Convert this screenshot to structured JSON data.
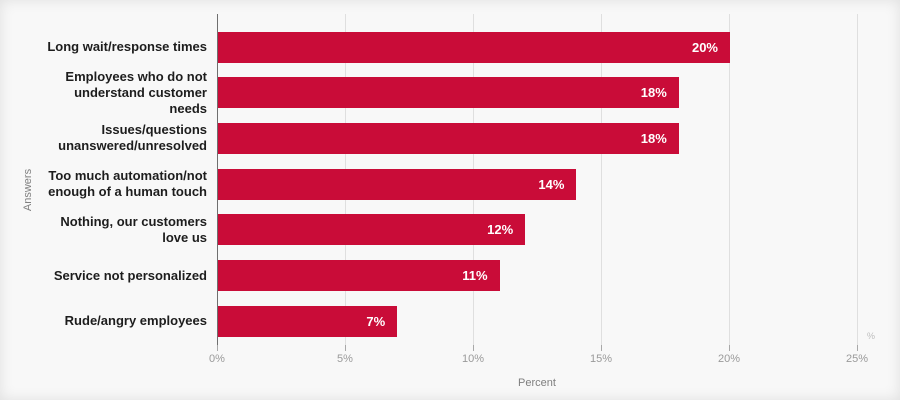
{
  "chart_data": {
    "type": "bar",
    "orientation": "horizontal",
    "title": "",
    "xlabel": "Percent",
    "ylabel": "Answers",
    "unit_label": "%",
    "categories": [
      [
        "Long wait/response times"
      ],
      [
        "Employees who do not",
        "understand customer",
        "needs"
      ],
      [
        "Issues/questions",
        "unanswered/unresolved"
      ],
      [
        "Too much automation/not",
        "enough of a human touch"
      ],
      [
        "Nothing, our customers",
        "love us"
      ],
      [
        "Service not personalized"
      ],
      [
        "Rude/angry employees"
      ]
    ],
    "values": [
      20,
      18,
      18,
      14,
      12,
      11,
      7
    ],
    "value_labels": [
      "20%",
      "18%",
      "18%",
      "14%",
      "12%",
      "11%",
      "7%"
    ],
    "x_ticks": [
      "0%",
      "5%",
      "10%",
      "15%",
      "20%",
      "25%"
    ],
    "x_tick_values": [
      0,
      5,
      10,
      15,
      20,
      25
    ],
    "xlim": [
      0,
      25.8
    ],
    "grid": "vertical",
    "legend": "none",
    "bar_color": "#c90c38",
    "value_label_color": "#ffffff",
    "category_label_color": "#1d1d1d",
    "tick_label_color": "#9a9a9a",
    "background_color": "#f8f8f8"
  }
}
